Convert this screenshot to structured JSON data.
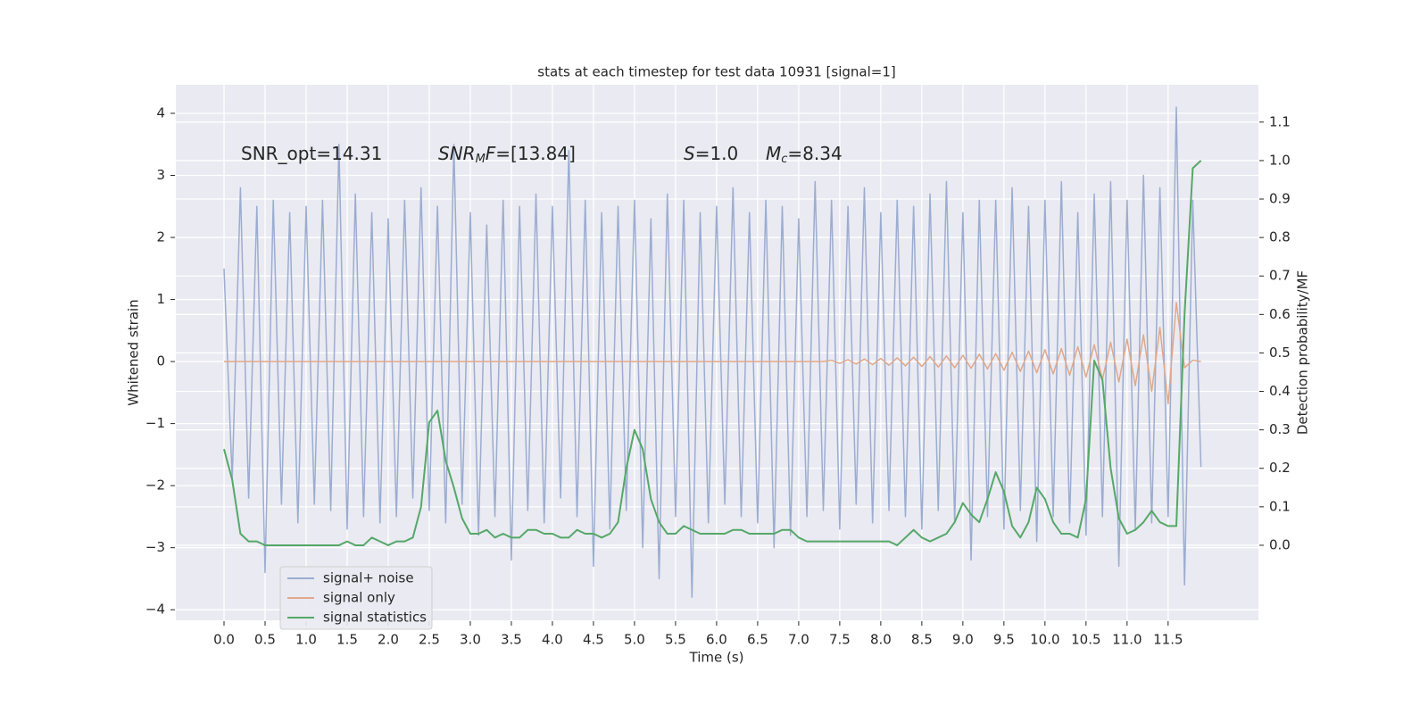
{
  "chart_data": {
    "type": "line",
    "title": "stats at each timestep for test data 10931 [signal=1]",
    "xlabel": "Time (s)",
    "ylabel": "Whitened strain",
    "y2label": "Detection probability/MF",
    "grid": true,
    "legend": "lower left",
    "annotations": [
      [
        "SNR_opt=14.31"
      ],
      [
        "SNR",
        "M",
        "F",
        "=[13.84]"
      ],
      [
        "S",
        "=1.0"
      ],
      [
        "M",
        "c",
        "=8.34"
      ]
    ],
    "xlim": [
      -0.587,
      12.6
    ],
    "ylim": [
      -4.17,
      4.46
    ],
    "y2lim": [
      -0.195,
      1.197
    ],
    "xticks": [
      {
        "value": 0,
        "label": "0.0"
      },
      {
        "value": 0.5,
        "label": "0.5"
      },
      {
        "value": 1,
        "label": "1.0"
      },
      {
        "value": 1.5,
        "label": "1.5"
      },
      {
        "value": 2,
        "label": "2.0"
      },
      {
        "value": 2.5,
        "label": "2.5"
      },
      {
        "value": 3,
        "label": "3.0"
      },
      {
        "value": 3.5,
        "label": "3.5"
      },
      {
        "value": 4,
        "label": "4.0"
      },
      {
        "value": 4.5,
        "label": "4.5"
      },
      {
        "value": 5,
        "label": "5.0"
      },
      {
        "value": 5.5,
        "label": "5.5"
      },
      {
        "value": 6,
        "label": "6.0"
      },
      {
        "value": 6.5,
        "label": "6.5"
      },
      {
        "value": 7,
        "label": "7.0"
      },
      {
        "value": 7.5,
        "label": "7.5"
      },
      {
        "value": 8,
        "label": "8.0"
      },
      {
        "value": 8.5,
        "label": "8.5"
      },
      {
        "value": 9,
        "label": "9.0"
      },
      {
        "value": 9.5,
        "label": "9.5"
      },
      {
        "value": 10,
        "label": "10.0"
      },
      {
        "value": 10.5,
        "label": "10.5"
      },
      {
        "value": 11,
        "label": "11.0"
      },
      {
        "value": 11.5,
        "label": "11.5"
      }
    ],
    "yticks": [
      {
        "value": -4,
        "label": "−4"
      },
      {
        "value": -3,
        "label": "−3"
      },
      {
        "value": -2,
        "label": "−2"
      },
      {
        "value": -1,
        "label": "−1"
      },
      0,
      1,
      2,
      3,
      4
    ],
    "y2ticks": [
      {
        "value": 0,
        "label": "0.0"
      },
      {
        "value": 0.1,
        "label": "0.1"
      },
      {
        "value": 0.2,
        "label": "0.2"
      },
      {
        "value": 0.3,
        "label": "0.3"
      },
      {
        "value": 0.4,
        "label": "0.4"
      },
      {
        "value": 0.5,
        "label": "0.5"
      },
      {
        "value": 0.6,
        "label": "0.6"
      },
      {
        "value": 0.7,
        "label": "0.7"
      },
      {
        "value": 0.8,
        "label": "0.8"
      },
      {
        "value": 0.9,
        "label": "0.9"
      },
      {
        "value": 1,
        "label": "1.0"
      },
      {
        "value": 1.1,
        "label": "1.1"
      }
    ],
    "x": [
      0.0,
      0.1,
      0.2,
      0.3,
      0.4,
      0.5,
      0.6,
      0.7,
      0.8,
      0.9,
      1.0,
      1.1,
      1.2,
      1.3,
      1.4,
      1.5,
      1.6,
      1.7,
      1.8,
      1.9,
      2.0,
      2.1,
      2.2,
      2.3,
      2.4,
      2.5,
      2.6,
      2.7,
      2.8,
      2.9,
      3.0,
      3.1,
      3.2,
      3.3,
      3.4,
      3.5,
      3.6,
      3.7,
      3.8,
      3.9,
      4.0,
      4.1,
      4.2,
      4.3,
      4.4,
      4.5,
      4.6,
      4.7,
      4.8,
      4.9,
      5.0,
      5.1,
      5.2,
      5.3,
      5.4,
      5.5,
      5.6,
      5.7,
      5.8,
      5.9,
      6.0,
      6.1,
      6.2,
      6.3,
      6.4,
      6.5,
      6.6,
      6.7,
      6.8,
      6.9,
      7.0,
      7.1,
      7.2,
      7.3,
      7.4,
      7.5,
      7.6,
      7.7,
      7.8,
      7.9,
      8.0,
      8.1,
      8.2,
      8.3,
      8.4,
      8.5,
      8.6,
      8.7,
      8.8,
      8.9,
      9.0,
      9.1,
      9.2,
      9.3,
      9.4,
      9.5,
      9.6,
      9.7,
      9.8,
      9.9,
      10.0,
      10.1,
      10.2,
      10.3,
      10.4,
      10.5,
      10.6,
      10.7,
      10.8,
      10.9,
      11.0,
      11.1,
      11.2,
      11.3,
      11.4,
      11.5,
      11.6,
      11.7,
      11.8,
      11.9
    ],
    "series": [
      {
        "name": "signal+ noise",
        "color": "#9badd0",
        "values": [
          1.5,
          -1.9,
          2.8,
          -2.2,
          2.5,
          -3.4,
          2.6,
          -2.3,
          2.4,
          -2.6,
          2.5,
          -2.3,
          2.6,
          -2.4,
          3.5,
          -2.7,
          2.7,
          -2.5,
          2.4,
          -2.6,
          2.3,
          -2.5,
          2.6,
          -2.2,
          2.8,
          -2.4,
          2.5,
          -2.6,
          3.5,
          -2.3,
          2.4,
          -2.8,
          2.2,
          -2.5,
          2.6,
          -3.2,
          2.5,
          -2.4,
          2.7,
          -2.6,
          2.5,
          -2.2,
          3.4,
          -2.5,
          2.6,
          -3.3,
          2.4,
          -2.7,
          2.5,
          -2.4,
          2.6,
          -3.0,
          2.3,
          -3.5,
          2.7,
          -2.5,
          2.6,
          -3.8,
          2.4,
          -2.6,
          2.5,
          -2.3,
          2.8,
          -2.5,
          2.4,
          -2.6,
          2.6,
          -3.0,
          2.5,
          -2.8,
          2.3,
          -2.5,
          2.9,
          -2.4,
          2.6,
          -2.7,
          2.5,
          -2.3,
          2.8,
          -2.6,
          2.4,
          -2.4,
          2.6,
          -2.5,
          2.5,
          -2.7,
          2.7,
          -2.4,
          2.9,
          -2.6,
          2.4,
          -3.2,
          2.6,
          -2.5,
          2.6,
          -2.7,
          2.8,
          -2.4,
          2.5,
          -2.9,
          2.6,
          -2.5,
          2.9,
          -2.6,
          2.4,
          -2.8,
          2.7,
          -2.5,
          2.9,
          -3.3,
          2.6,
          -2.7,
          3.0,
          -2.6,
          2.8,
          -2.5,
          4.1,
          -3.6,
          2.6,
          -1.7
        ]
      },
      {
        "name": "signal only",
        "color": "#e0a88a",
        "values": [
          0,
          0,
          0,
          0,
          0,
          0,
          0,
          0,
          0,
          0,
          0,
          0,
          0,
          0,
          0,
          0,
          0,
          0,
          0,
          0,
          0,
          0,
          0,
          0,
          0,
          0,
          0,
          0,
          0,
          0,
          0,
          0,
          0,
          0,
          0,
          0,
          0,
          0,
          0,
          0,
          0,
          0,
          0,
          0,
          0,
          0,
          0,
          0,
          0,
          0,
          0,
          0,
          0,
          0,
          0,
          0,
          0,
          0,
          0,
          0,
          0,
          0,
          0,
          0,
          0,
          0,
          0,
          0,
          0,
          0,
          0,
          0,
          0,
          0,
          0.02,
          -0.03,
          0.03,
          -0.04,
          0.04,
          -0.05,
          0.05,
          -0.06,
          0.06,
          -0.07,
          0.07,
          -0.08,
          0.08,
          -0.09,
          0.09,
          -0.1,
          0.1,
          -0.11,
          0.12,
          -0.12,
          0.13,
          -0.14,
          0.15,
          -0.16,
          0.17,
          -0.18,
          0.19,
          -0.2,
          0.21,
          -0.22,
          0.24,
          -0.25,
          0.27,
          -0.29,
          0.31,
          -0.33,
          0.36,
          -0.39,
          0.43,
          -0.48,
          0.55,
          -0.68,
          0.95,
          -0.1,
          0.02,
          0.0
        ]
      },
      {
        "name": "signal statistics",
        "color": "#55a868",
        "axis": "y2",
        "values": [
          0.25,
          0.17,
          0.03,
          0.01,
          0.01,
          0.0,
          0.0,
          0.0,
          0.0,
          0.0,
          0.0,
          0.0,
          0.0,
          0.0,
          0.0,
          0.01,
          0.0,
          0.0,
          0.02,
          0.01,
          0.0,
          0.01,
          0.01,
          0.02,
          0.1,
          0.32,
          0.35,
          0.22,
          0.15,
          0.07,
          0.03,
          0.03,
          0.04,
          0.02,
          0.03,
          0.02,
          0.02,
          0.04,
          0.04,
          0.03,
          0.03,
          0.02,
          0.02,
          0.04,
          0.03,
          0.03,
          0.02,
          0.03,
          0.06,
          0.2,
          0.3,
          0.25,
          0.12,
          0.06,
          0.03,
          0.03,
          0.05,
          0.04,
          0.03,
          0.03,
          0.03,
          0.03,
          0.04,
          0.04,
          0.03,
          0.03,
          0.03,
          0.03,
          0.04,
          0.04,
          0.02,
          0.01,
          0.01,
          0.01,
          0.01,
          0.01,
          0.01,
          0.01,
          0.01,
          0.01,
          0.01,
          0.01,
          0.0,
          0.02,
          0.04,
          0.02,
          0.01,
          0.02,
          0.03,
          0.06,
          0.11,
          0.08,
          0.06,
          0.12,
          0.19,
          0.14,
          0.05,
          0.02,
          0.06,
          0.15,
          0.12,
          0.06,
          0.03,
          0.03,
          0.02,
          0.12,
          0.48,
          0.43,
          0.2,
          0.07,
          0.03,
          0.04,
          0.06,
          0.09,
          0.06,
          0.05,
          0.05,
          0.6,
          0.98,
          1.0
        ]
      }
    ]
  }
}
